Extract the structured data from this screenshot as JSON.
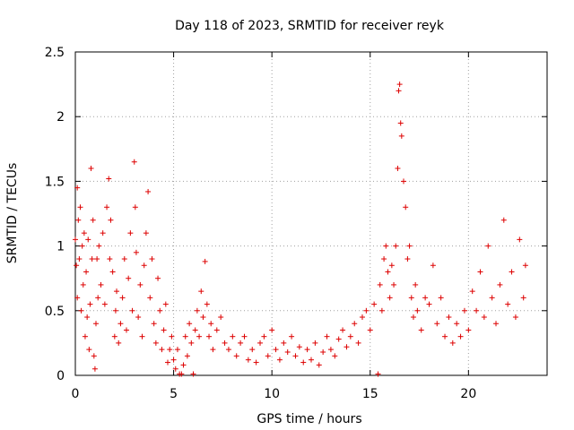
{
  "chart_data": {
    "type": "scatter",
    "title": "Day 118 of 2023, SRMTID for receiver reyk",
    "xlabel": "GPS time / hours",
    "ylabel": "SRMTID / TECUs",
    "xlim": [
      0,
      24
    ],
    "ylim": [
      0,
      2.5
    ],
    "x_ticks": [
      0,
      5,
      10,
      15,
      20
    ],
    "x_tick_labels": [
      "0",
      "5",
      "10",
      "15",
      "20"
    ],
    "y_ticks": [
      0,
      0.5,
      1,
      1.5,
      2,
      2.5
    ],
    "y_tick_labels": [
      "0",
      "0.5",
      "1",
      "1.5",
      "2",
      "2.5"
    ],
    "grid": true,
    "marker": "+",
    "color": "#dd0000",
    "series": [
      {
        "name": "SRMTID",
        "points": [
          [
            0.0,
            1.05
          ],
          [
            0.05,
            0.85
          ],
          [
            0.1,
            1.45
          ],
          [
            0.1,
            0.6
          ],
          [
            0.15,
            1.2
          ],
          [
            0.2,
            0.9
          ],
          [
            0.25,
            1.3
          ],
          [
            0.3,
            0.5
          ],
          [
            0.35,
            1.0
          ],
          [
            0.4,
            0.7
          ],
          [
            0.45,
            1.1
          ],
          [
            0.5,
            0.3
          ],
          [
            0.55,
            0.8
          ],
          [
            0.6,
            0.45
          ],
          [
            0.65,
            1.05
          ],
          [
            0.7,
            0.2
          ],
          [
            0.75,
            0.55
          ],
          [
            0.8,
            1.6
          ],
          [
            0.85,
            0.9
          ],
          [
            0.9,
            1.2
          ],
          [
            0.95,
            0.15
          ],
          [
            1.0,
            0.05
          ],
          [
            1.05,
            0.4
          ],
          [
            1.1,
            0.9
          ],
          [
            1.15,
            0.6
          ],
          [
            1.2,
            1.0
          ],
          [
            1.3,
            0.7
          ],
          [
            1.4,
            1.1
          ],
          [
            1.5,
            0.55
          ],
          [
            1.6,
            1.3
          ],
          [
            1.7,
            1.52
          ],
          [
            1.75,
            0.9
          ],
          [
            1.8,
            1.2
          ],
          [
            1.9,
            0.8
          ],
          [
            2.0,
            0.3
          ],
          [
            2.05,
            0.5
          ],
          [
            2.1,
            0.65
          ],
          [
            2.2,
            0.25
          ],
          [
            2.3,
            0.4
          ],
          [
            2.4,
            0.6
          ],
          [
            2.5,
            0.9
          ],
          [
            2.6,
            0.35
          ],
          [
            2.7,
            0.75
          ],
          [
            2.8,
            1.1
          ],
          [
            2.9,
            0.5
          ],
          [
            3.0,
            1.65
          ],
          [
            3.05,
            1.3
          ],
          [
            3.1,
            0.95
          ],
          [
            3.2,
            0.45
          ],
          [
            3.3,
            0.7
          ],
          [
            3.4,
            0.3
          ],
          [
            3.5,
            0.85
          ],
          [
            3.6,
            1.1
          ],
          [
            3.7,
            1.42
          ],
          [
            3.8,
            0.6
          ],
          [
            3.9,
            0.9
          ],
          [
            4.0,
            0.4
          ],
          [
            4.1,
            0.25
          ],
          [
            4.2,
            0.75
          ],
          [
            4.3,
            0.5
          ],
          [
            4.4,
            0.2
          ],
          [
            4.5,
            0.35
          ],
          [
            4.6,
            0.55
          ],
          [
            4.7,
            0.1
          ],
          [
            4.8,
            0.2
          ],
          [
            4.9,
            0.3
          ],
          [
            5.0,
            0.12
          ],
          [
            5.1,
            0.05
          ],
          [
            5.2,
            0.2
          ],
          [
            5.3,
            0.01
          ],
          [
            5.4,
            0.01
          ],
          [
            5.5,
            0.08
          ],
          [
            5.6,
            0.3
          ],
          [
            5.7,
            0.15
          ],
          [
            5.8,
            0.4
          ],
          [
            5.9,
            0.25
          ],
          [
            6.0,
            0.01
          ],
          [
            6.1,
            0.35
          ],
          [
            6.2,
            0.5
          ],
          [
            6.3,
            0.3
          ],
          [
            6.4,
            0.65
          ],
          [
            6.5,
            0.45
          ],
          [
            6.6,
            0.88
          ],
          [
            6.7,
            0.55
          ],
          [
            6.8,
            0.3
          ],
          [
            6.9,
            0.4
          ],
          [
            7.0,
            0.2
          ],
          [
            7.2,
            0.35
          ],
          [
            7.4,
            0.45
          ],
          [
            7.6,
            0.25
          ],
          [
            7.8,
            0.2
          ],
          [
            8.0,
            0.3
          ],
          [
            8.2,
            0.15
          ],
          [
            8.4,
            0.25
          ],
          [
            8.6,
            0.3
          ],
          [
            8.8,
            0.12
          ],
          [
            9.0,
            0.2
          ],
          [
            9.2,
            0.1
          ],
          [
            9.4,
            0.25
          ],
          [
            9.6,
            0.3
          ],
          [
            9.8,
            0.15
          ],
          [
            10.0,
            0.35
          ],
          [
            10.2,
            0.2
          ],
          [
            10.4,
            0.12
          ],
          [
            10.6,
            0.25
          ],
          [
            10.8,
            0.18
          ],
          [
            11.0,
            0.3
          ],
          [
            11.2,
            0.15
          ],
          [
            11.4,
            0.22
          ],
          [
            11.6,
            0.1
          ],
          [
            11.8,
            0.2
          ],
          [
            12.0,
            0.12
          ],
          [
            12.2,
            0.25
          ],
          [
            12.4,
            0.08
          ],
          [
            12.6,
            0.18
          ],
          [
            12.8,
            0.3
          ],
          [
            13.0,
            0.2
          ],
          [
            13.2,
            0.15
          ],
          [
            13.4,
            0.28
          ],
          [
            13.6,
            0.35
          ],
          [
            13.8,
            0.22
          ],
          [
            14.0,
            0.3
          ],
          [
            14.2,
            0.4
          ],
          [
            14.4,
            0.25
          ],
          [
            14.6,
            0.45
          ],
          [
            14.8,
            0.5
          ],
          [
            15.0,
            0.35
          ],
          [
            15.2,
            0.55
          ],
          [
            15.4,
            0.01
          ],
          [
            15.5,
            0.7
          ],
          [
            15.6,
            0.5
          ],
          [
            15.7,
            0.9
          ],
          [
            15.8,
            1.0
          ],
          [
            15.9,
            0.8
          ],
          [
            16.0,
            0.6
          ],
          [
            16.1,
            0.85
          ],
          [
            16.2,
            0.7
          ],
          [
            16.3,
            1.0
          ],
          [
            16.4,
            1.6
          ],
          [
            16.45,
            2.2
          ],
          [
            16.5,
            2.25
          ],
          [
            16.55,
            1.95
          ],
          [
            16.6,
            1.85
          ],
          [
            16.7,
            1.5
          ],
          [
            16.8,
            1.3
          ],
          [
            16.9,
            0.9
          ],
          [
            17.0,
            1.0
          ],
          [
            17.1,
            0.6
          ],
          [
            17.2,
            0.45
          ],
          [
            17.3,
            0.7
          ],
          [
            17.4,
            0.5
          ],
          [
            17.6,
            0.35
          ],
          [
            17.8,
            0.6
          ],
          [
            18.0,
            0.55
          ],
          [
            18.2,
            0.85
          ],
          [
            18.4,
            0.4
          ],
          [
            18.6,
            0.6
          ],
          [
            18.8,
            0.3
          ],
          [
            19.0,
            0.45
          ],
          [
            19.2,
            0.25
          ],
          [
            19.4,
            0.4
          ],
          [
            19.6,
            0.3
          ],
          [
            19.8,
            0.5
          ],
          [
            20.0,
            0.35
          ],
          [
            20.2,
            0.65
          ],
          [
            20.4,
            0.5
          ],
          [
            20.6,
            0.8
          ],
          [
            20.8,
            0.45
          ],
          [
            21.0,
            1.0
          ],
          [
            21.2,
            0.6
          ],
          [
            21.4,
            0.4
          ],
          [
            21.6,
            0.7
          ],
          [
            21.8,
            1.2
          ],
          [
            22.0,
            0.55
          ],
          [
            22.2,
            0.8
          ],
          [
            22.4,
            0.45
          ],
          [
            22.6,
            1.05
          ],
          [
            22.8,
            0.6
          ],
          [
            22.9,
            0.85
          ]
        ]
      }
    ]
  }
}
